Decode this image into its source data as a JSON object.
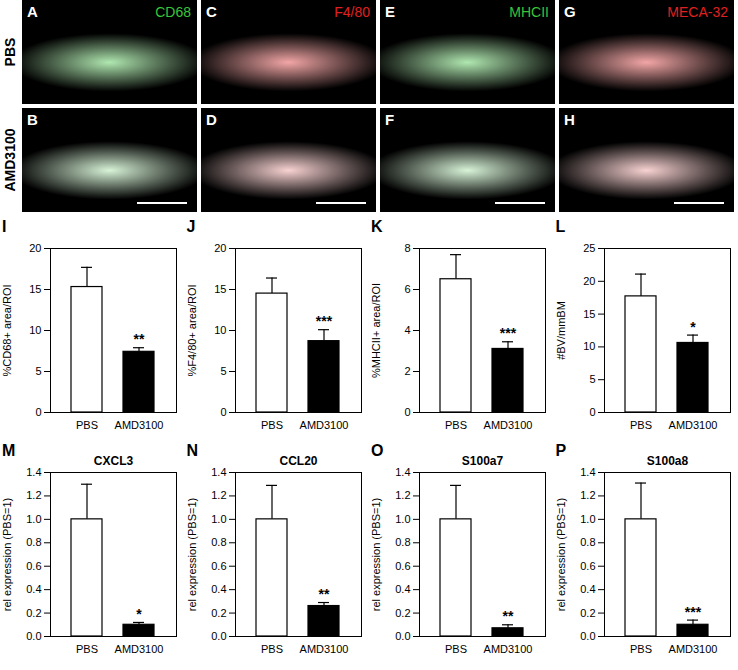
{
  "image_panels": {
    "row_labels": [
      "PBS",
      "AMD3100"
    ],
    "columns": [
      {
        "stain": "CD68",
        "color": "#39c43a",
        "panels": [
          "A",
          "B"
        ]
      },
      {
        "stain": "F4/80",
        "color": "#e02020",
        "panels": [
          "C",
          "D"
        ]
      },
      {
        "stain": "MHCII",
        "color": "#39c43a",
        "panels": [
          "E",
          "F"
        ]
      },
      {
        "stain": "MECA-32",
        "color": "#e02020",
        "panels": [
          "G",
          "H"
        ]
      }
    ]
  },
  "chart_data": [
    {
      "type": "bar",
      "panel": "I",
      "y_label": "%CD68+ area/ROI",
      "categories": [
        "PBS",
        "AMD3100"
      ],
      "values": [
        15.3,
        7.4
      ],
      "errors": [
        2.4,
        0.5
      ],
      "colors": [
        "#ffffff",
        "#000000"
      ],
      "ylim": [
        0,
        20
      ],
      "yticks": [
        0,
        5,
        10,
        15,
        20
      ],
      "annotations": [
        {
          "category": "AMD3100",
          "text": "**"
        }
      ]
    },
    {
      "type": "bar",
      "panel": "J",
      "y_label": "%F4/80+ area/ROI",
      "categories": [
        "PBS",
        "AMD3100"
      ],
      "values": [
        14.5,
        8.7
      ],
      "errors": [
        1.9,
        1.4
      ],
      "colors": [
        "#ffffff",
        "#000000"
      ],
      "ylim": [
        0,
        20
      ],
      "yticks": [
        0,
        5,
        10,
        15,
        20
      ],
      "annotations": [
        {
          "category": "AMD3100",
          "text": "***"
        }
      ]
    },
    {
      "type": "bar",
      "panel": "K",
      "y_label": "%MHCII+ area/ROI",
      "categories": [
        "PBS",
        "AMD3100"
      ],
      "values": [
        6.5,
        3.1
      ],
      "errors": [
        1.2,
        0.35
      ],
      "colors": [
        "#ffffff",
        "#000000"
      ],
      "ylim": [
        0,
        8
      ],
      "yticks": [
        0,
        2,
        4,
        6,
        8
      ],
      "annotations": [
        {
          "category": "AMD3100",
          "text": "***"
        }
      ]
    },
    {
      "type": "bar",
      "panel": "L",
      "y_label": "#BV/mmBM",
      "categories": [
        "PBS",
        "AMD3100"
      ],
      "values": [
        17.7,
        10.6
      ],
      "errors": [
        3.4,
        1.2
      ],
      "colors": [
        "#ffffff",
        "#000000"
      ],
      "ylim": [
        0,
        25
      ],
      "yticks": [
        0,
        5,
        10,
        15,
        20,
        25
      ],
      "annotations": [
        {
          "category": "AMD3100",
          "text": "*"
        }
      ]
    },
    {
      "type": "bar",
      "panel": "M",
      "title": "CXCL3",
      "y_label": "rel expression (PBS=1)",
      "categories": [
        "PBS",
        "AMD3100"
      ],
      "values": [
        1.0,
        0.1
      ],
      "errors": [
        0.3,
        0.02
      ],
      "colors": [
        "#ffffff",
        "#000000"
      ],
      "ylim": [
        0,
        1.4
      ],
      "yticks": [
        {
          "value": 0,
          "label": "0.0"
        },
        0.2,
        0.4,
        0.6,
        0.8,
        {
          "value": 1,
          "label": "1.0"
        },
        1.2,
        1.4
      ],
      "annotations": [
        {
          "category": "AMD3100",
          "text": "*"
        }
      ]
    },
    {
      "type": "bar",
      "panel": "N",
      "title": "CCL20",
      "y_label": "rel expression (PBS=1)",
      "categories": [
        "PBS",
        "AMD3100"
      ],
      "values": [
        1.0,
        0.26
      ],
      "errors": [
        0.29,
        0.03
      ],
      "colors": [
        "#ffffff",
        "#000000"
      ],
      "ylim": [
        0,
        1.4
      ],
      "yticks": [
        {
          "value": 0,
          "label": "0.0"
        },
        0.2,
        0.4,
        0.6,
        0.8,
        {
          "value": 1,
          "label": "1.0"
        },
        1.2,
        1.4
      ],
      "annotations": [
        {
          "category": "AMD3100",
          "text": "**"
        }
      ]
    },
    {
      "type": "bar",
      "panel": "O",
      "title": "S100a7",
      "y_label": "rel expression (PBS=1)",
      "categories": [
        "PBS",
        "AMD3100"
      ],
      "values": [
        1.0,
        0.07
      ],
      "errors": [
        0.29,
        0.03
      ],
      "colors": [
        "#ffffff",
        "#000000"
      ],
      "ylim": [
        0,
        1.4
      ],
      "yticks": [
        {
          "value": 0,
          "label": "0.0"
        },
        0.2,
        0.4,
        0.6,
        0.8,
        {
          "value": 1,
          "label": "1.0"
        },
        1.2,
        1.4
      ],
      "annotations": [
        {
          "category": "AMD3100",
          "text": "**"
        }
      ]
    },
    {
      "type": "bar",
      "panel": "P",
      "title": "S100a8",
      "y_label": "rel expression (PBS=1)",
      "categories": [
        "PBS",
        "AMD3100"
      ],
      "values": [
        1.0,
        0.1
      ],
      "errors": [
        0.31,
        0.04
      ],
      "colors": [
        "#ffffff",
        "#000000"
      ],
      "ylim": [
        0,
        1.4
      ],
      "yticks": [
        {
          "value": 0,
          "label": "0.0"
        },
        0.2,
        0.4,
        0.6,
        0.8,
        {
          "value": 1,
          "label": "1.0"
        },
        1.2,
        1.4
      ],
      "annotations": [
        {
          "category": "AMD3100",
          "text": "***"
        }
      ]
    }
  ]
}
